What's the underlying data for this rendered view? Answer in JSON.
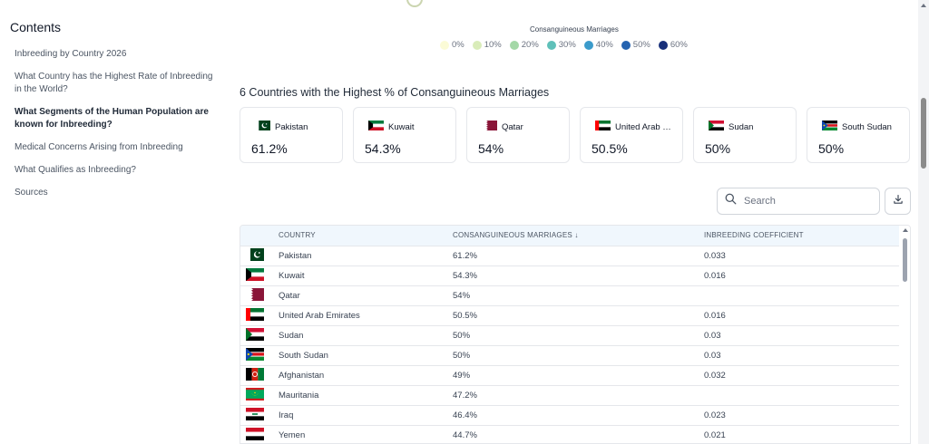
{
  "sidebar": {
    "title": "Contents",
    "items": [
      {
        "label": "Inbreeding by Country 2026",
        "active": false
      },
      {
        "label": "What Country has the Highest Rate of Inbreeding in the World?",
        "active": false
      },
      {
        "label": "What Segments of the Human Population are known for Inbreeding?",
        "active": true
      },
      {
        "label": "Medical Concerns Arising from Inbreeding",
        "active": false
      },
      {
        "label": "What Qualifies as Inbreeding?",
        "active": false
      },
      {
        "label": "Sources",
        "active": false
      }
    ]
  },
  "legend": {
    "title": "Consanguineous Marriages",
    "items": [
      {
        "label": "0%",
        "color": "#fbfbd6"
      },
      {
        "label": "10%",
        "color": "#d9ecb9"
      },
      {
        "label": "20%",
        "color": "#a4d8a7"
      },
      {
        "label": "30%",
        "color": "#5fc0b9"
      },
      {
        "label": "40%",
        "color": "#3b9bcb"
      },
      {
        "label": "50%",
        "color": "#2563b0"
      },
      {
        "label": "60%",
        "color": "#18307a"
      }
    ]
  },
  "section_title": "6 Countries with the Highest % of Consanguineous Marriages",
  "cards": [
    {
      "name": "Pakistan",
      "value": "61.2%",
      "flag": "pakistan"
    },
    {
      "name": "Kuwait",
      "value": "54.3%",
      "flag": "kuwait"
    },
    {
      "name": "Qatar",
      "value": "54%",
      "flag": "qatar"
    },
    {
      "name": "United Arab E...",
      "value": "50.5%",
      "flag": "uae"
    },
    {
      "name": "Sudan",
      "value": "50%",
      "flag": "sudan"
    },
    {
      "name": "South Sudan",
      "value": "50%",
      "flag": "south-sudan"
    }
  ],
  "search": {
    "placeholder": "Search",
    "icon": "search-icon"
  },
  "download": {
    "icon": "download-icon"
  },
  "table": {
    "headers": {
      "country": "COUNTRY",
      "cm": "CONSANGUINEOUS MARRIAGES ↓",
      "ic": "INBREEDING COEFFICIENT"
    },
    "rows": [
      {
        "flag": "pakistan",
        "country": "Pakistan",
        "cm": "61.2%",
        "ic": "0.033"
      },
      {
        "flag": "kuwait",
        "country": "Kuwait",
        "cm": "54.3%",
        "ic": "0.016"
      },
      {
        "flag": "qatar",
        "country": "Qatar",
        "cm": "54%",
        "ic": ""
      },
      {
        "flag": "uae",
        "country": "United Arab Emirates",
        "cm": "50.5%",
        "ic": "0.016"
      },
      {
        "flag": "sudan",
        "country": "Sudan",
        "cm": "50%",
        "ic": "0.03"
      },
      {
        "flag": "south-sudan",
        "country": "South Sudan",
        "cm": "50%",
        "ic": "0.03"
      },
      {
        "flag": "afghanistan",
        "country": "Afghanistan",
        "cm": "49%",
        "ic": "0.032"
      },
      {
        "flag": "mauritania",
        "country": "Mauritania",
        "cm": "47.2%",
        "ic": ""
      },
      {
        "flag": "iraq",
        "country": "Iraq",
        "cm": "46.4%",
        "ic": "0.023"
      },
      {
        "flag": "yemen",
        "country": "Yemen",
        "cm": "44.7%",
        "ic": "0.021"
      }
    ]
  }
}
